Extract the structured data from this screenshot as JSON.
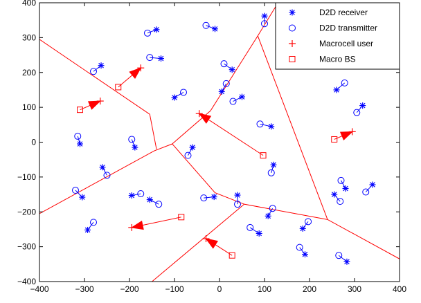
{
  "chart_data": {
    "type": "scatter",
    "xlim": [
      -400,
      400
    ],
    "ylim": [
      -400,
      400
    ],
    "x_ticks": [
      -400,
      -300,
      -200,
      -100,
      0,
      100,
      200,
      300,
      400
    ],
    "y_ticks": [
      -400,
      -300,
      -200,
      -100,
      0,
      100,
      200,
      300,
      400
    ],
    "grid": false,
    "legend_position": "top-right",
    "legend": [
      {
        "label": "D2D receiver",
        "marker": "asterisk",
        "color": "#0000ff"
      },
      {
        "label": "D2D transmitter",
        "marker": "circle",
        "color": "#0000ff"
      },
      {
        "label": "Macrocell user",
        "marker": "plus",
        "color": "#ff0000"
      },
      {
        "label": "Macro BS",
        "marker": "square",
        "color": "#ff0000"
      }
    ],
    "d2d_pairs": [
      {
        "tx": [
          -160,
          313
        ],
        "rx": [
          -140,
          323
        ]
      },
      {
        "tx": [
          -30,
          335
        ],
        "rx": [
          -10,
          325
        ]
      },
      {
        "tx": [
          100,
          340
        ],
        "rx": [
          100,
          362
        ]
      },
      {
        "tx": [
          -280,
          203
        ],
        "rx": [
          -263,
          220
        ]
      },
      {
        "tx": [
          -155,
          243
        ],
        "rx": [
          -130,
          240
        ]
      },
      {
        "tx": [
          10,
          225
        ],
        "rx": [
          28,
          208
        ]
      },
      {
        "tx": [
          15,
          168
        ],
        "rx": [
          5,
          145
        ]
      },
      {
        "tx": [
          -80,
          143
        ],
        "rx": [
          -100,
          128
        ]
      },
      {
        "tx": [
          30,
          117
        ],
        "rx": [
          50,
          130
        ]
      },
      {
        "tx": [
          278,
          170
        ],
        "rx": [
          260,
          150
        ]
      },
      {
        "tx": [
          305,
          85
        ],
        "rx": [
          318,
          105
        ]
      },
      {
        "tx": [
          90,
          52
        ],
        "rx": [
          115,
          45
        ]
      },
      {
        "tx": [
          -315,
          17
        ],
        "rx": [
          -310,
          -5
        ]
      },
      {
        "tx": [
          -195,
          8
        ],
        "rx": [
          -188,
          -15
        ]
      },
      {
        "tx": [
          -70,
          -38
        ],
        "rx": [
          -60,
          -15
        ]
      },
      {
        "tx": [
          -250,
          -95
        ],
        "rx": [
          -260,
          -72
        ]
      },
      {
        "tx": [
          115,
          -88
        ],
        "rx": [
          120,
          -65
        ]
      },
      {
        "tx": [
          -320,
          -138
        ],
        "rx": [
          -305,
          -158
        ]
      },
      {
        "tx": [
          -175,
          -148
        ],
        "rx": [
          -195,
          -153
        ]
      },
      {
        "tx": [
          -135,
          -178
        ],
        "rx": [
          -155,
          -165
        ]
      },
      {
        "tx": [
          -35,
          -160
        ],
        "rx": [
          -12,
          -157
        ]
      },
      {
        "tx": [
          40,
          -178
        ],
        "rx": [
          40,
          -152
        ]
      },
      {
        "tx": [
          118,
          -190
        ],
        "rx": [
          108,
          -212
        ]
      },
      {
        "tx": [
          270,
          -110
        ],
        "rx": [
          280,
          -133
        ]
      },
      {
        "tx": [
          268,
          -170
        ],
        "rx": [
          255,
          -150
        ]
      },
      {
        "tx": [
          325,
          -143
        ],
        "rx": [
          340,
          -122
        ]
      },
      {
        "tx": [
          -280,
          -230
        ],
        "rx": [
          -293,
          -252
        ]
      },
      {
        "tx": [
          68,
          -245
        ],
        "rx": [
          88,
          -262
        ]
      },
      {
        "tx": [
          197,
          -228
        ],
        "rx": [
          185,
          -248
        ]
      },
      {
        "tx": [
          178,
          -302
        ],
        "rx": [
          190,
          -322
        ]
      },
      {
        "tx": [
          265,
          -325
        ],
        "rx": [
          283,
          -343
        ]
      }
    ],
    "macro_links": [
      {
        "bs": [
          -225,
          158
        ],
        "ue": [
          -175,
          213
        ]
      },
      {
        "bs": [
          -310,
          93
        ],
        "ue": [
          -265,
          118
        ]
      },
      {
        "bs": [
          97,
          -38
        ],
        "ue": [
          -45,
          82
        ]
      },
      {
        "bs": [
          255,
          8
        ],
        "ue": [
          295,
          30
        ]
      },
      {
        "bs": [
          -85,
          -215
        ],
        "ue": [
          -195,
          -245
        ]
      },
      {
        "bs": [
          28,
          -325
        ],
        "ue": [
          -30,
          -277
        ]
      }
    ],
    "cell_boundaries": [
      [
        [
          -400,
          295
        ],
        [
          -155,
          80
        ],
        [
          -140,
          -20
        ]
      ],
      [
        [
          -400,
          -205
        ],
        [
          -145,
          -25
        ],
        [
          -105,
          -5
        ],
        [
          -20,
          90
        ],
        [
          85,
          305
        ],
        [
          130,
          400
        ]
      ],
      [
        [
          -105,
          -5
        ],
        [
          -10,
          -145
        ],
        [
          55,
          -178
        ],
        [
          240,
          -222
        ],
        [
          400,
          -335
        ]
      ],
      [
        [
          55,
          -178
        ],
        [
          -150,
          -400
        ]
      ],
      [
        [
          85,
          305
        ],
        [
          240,
          -222
        ]
      ]
    ]
  }
}
